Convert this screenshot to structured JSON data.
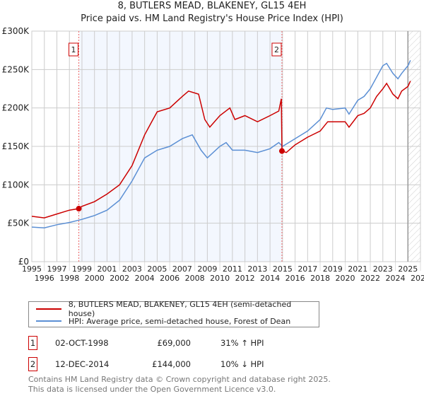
{
  "header": {
    "title": "8, BUTLERS MEAD, BLAKENEY, GL15 4EH",
    "subtitle": "Price paid vs. HM Land Registry's House Price Index (HPI)"
  },
  "chart_data": {
    "type": "line",
    "ylim": [
      0,
      300000
    ],
    "xlim": [
      1995,
      2026
    ],
    "yticks": [
      "£0",
      "£50K",
      "£100K",
      "£150K",
      "£200K",
      "£250K",
      "£300K"
    ],
    "ytick_values": [
      0,
      50000,
      100000,
      150000,
      200000,
      250000,
      300000
    ],
    "xticks": [
      "1995",
      "1996",
      "1997",
      "1998",
      "1999",
      "2000",
      "2001",
      "2002",
      "2003",
      "2004",
      "2005",
      "2006",
      "2007",
      "2008",
      "2009",
      "2010",
      "2011",
      "2012",
      "2013",
      "2014",
      "2015",
      "2016",
      "2017",
      "2018",
      "2019",
      "2020",
      "2021",
      "2022",
      "2023",
      "2024",
      "2025",
      "2026"
    ],
    "grid": true,
    "shaded_range": [
      1998.75,
      2014.95
    ],
    "hatched_from": 2025.0,
    "colors": {
      "property": "#cc0000",
      "hpi": "#5b8fd4"
    },
    "series": [
      {
        "name": "8, BUTLERS MEAD, BLAKENEY, GL15 4EH (semi-detached house)",
        "key": "property",
        "x": [
          1995,
          1996,
          1997,
          1998,
          1998.75,
          1999,
          2000,
          2001,
          2002,
          2003,
          2004,
          2004.5,
          2005,
          2006,
          2007,
          2007.5,
          2008.3,
          2008.8,
          2009.2,
          2010,
          2010.8,
          2011.2,
          2012,
          2013,
          2014,
          2014.7,
          2014.9,
          2014.95,
          2015.3,
          2016,
          2017,
          2018,
          2018.6,
          2019,
          2020,
          2020.3,
          2021,
          2021.5,
          2022,
          2022.5,
          2023,
          2023.3,
          2023.8,
          2024.2,
          2024.5,
          2025,
          2025.2
        ],
        "y": [
          59000,
          57000,
          62000,
          67000,
          69000,
          72000,
          78000,
          88000,
          100000,
          125000,
          165000,
          180000,
          195000,
          200000,
          215000,
          222000,
          218000,
          185000,
          175000,
          190000,
          200000,
          185000,
          190000,
          182000,
          190000,
          196000,
          212000,
          144000,
          142000,
          152000,
          162000,
          170000,
          182000,
          182000,
          182000,
          175000,
          190000,
          193000,
          200000,
          215000,
          225000,
          232000,
          218000,
          212000,
          222000,
          228000,
          235000
        ]
      },
      {
        "name": "HPI: Average price, semi-detached house, Forest of Dean",
        "key": "hpi",
        "x": [
          1995,
          1996,
          1997,
          1998,
          1999,
          2000,
          2001,
          2002,
          2003,
          2004,
          2005,
          2006,
          2007,
          2007.8,
          2008.5,
          2009,
          2010,
          2010.5,
          2011,
          2012,
          2013,
          2014,
          2014.7,
          2015,
          2016,
          2017,
          2018,
          2018.5,
          2019,
          2020,
          2020.3,
          2021,
          2021.5,
          2022,
          2022.5,
          2023,
          2023.3,
          2023.8,
          2024.2,
          2024.5,
          2025,
          2025.2
        ],
        "y": [
          45000,
          44000,
          48000,
          51000,
          55000,
          60000,
          67000,
          80000,
          105000,
          135000,
          145000,
          150000,
          160000,
          165000,
          145000,
          135000,
          150000,
          155000,
          145000,
          145000,
          142000,
          147000,
          155000,
          150000,
          160000,
          170000,
          185000,
          200000,
          198000,
          200000,
          192000,
          210000,
          215000,
          225000,
          240000,
          255000,
          258000,
          245000,
          238000,
          245000,
          255000,
          262000
        ]
      }
    ],
    "sales": [
      {
        "label": "1",
        "x": 1998.75,
        "y": 69000
      },
      {
        "label": "2",
        "x": 2014.95,
        "y": 144000
      }
    ]
  },
  "legend": {
    "property": "8, BUTLERS MEAD, BLAKENEY, GL15 4EH (semi-detached house)",
    "hpi": "HPI: Average price, semi-detached house, Forest of Dean"
  },
  "transactions": [
    {
      "num": "1",
      "date": "02-OCT-1998",
      "price": "£69,000",
      "delta": "31% ↑ HPI"
    },
    {
      "num": "2",
      "date": "12-DEC-2014",
      "price": "£144,000",
      "delta": "10% ↓ HPI"
    }
  ],
  "footer": {
    "line1": "Contains HM Land Registry data © Crown copyright and database right 2025.",
    "line2": "This data is licensed under the Open Government Licence v3.0."
  }
}
